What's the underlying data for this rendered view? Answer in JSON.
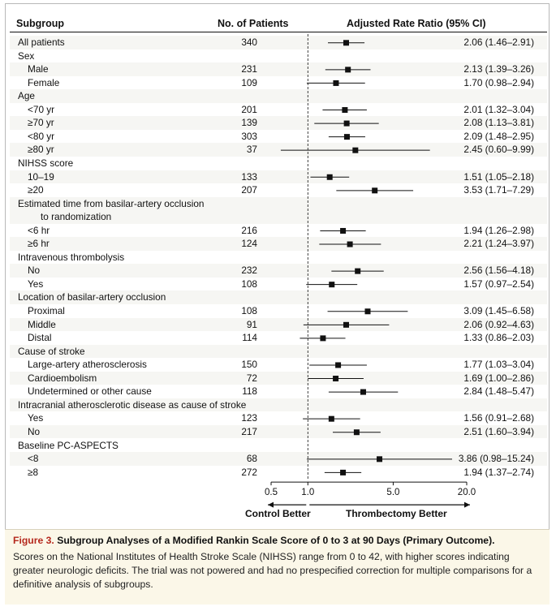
{
  "headers": {
    "subgroup": "Subgroup",
    "patients": "No. of Patients",
    "ratio": "Adjusted Rate Ratio (95% CI)"
  },
  "rows": [
    {
      "label": "All patients",
      "indent": 0,
      "n": "340",
      "ci": "2.06 (1.46–2.91)",
      "est": 2.06,
      "lo": 1.46,
      "hi": 2.91
    },
    {
      "label": "Sex",
      "indent": 0,
      "n": "",
      "ci": ""
    },
    {
      "label": "Male",
      "indent": 1,
      "n": "231",
      "ci": "2.13 (1.39–3.26)",
      "est": 2.13,
      "lo": 1.39,
      "hi": 3.26
    },
    {
      "label": "Female",
      "indent": 1,
      "n": "109",
      "ci": "1.70 (0.98–2.94)",
      "est": 1.7,
      "lo": 0.98,
      "hi": 2.94
    },
    {
      "label": "Age",
      "indent": 0,
      "n": "",
      "ci": ""
    },
    {
      "label": "<70 yr",
      "indent": 1,
      "n": "201",
      "ci": "2.01 (1.32–3.04)",
      "est": 2.01,
      "lo": 1.32,
      "hi": 3.04
    },
    {
      "label": "≥70 yr",
      "indent": 1,
      "n": "139",
      "ci": "2.08 (1.13–3.81)",
      "est": 2.08,
      "lo": 1.13,
      "hi": 3.81
    },
    {
      "label": "<80 yr",
      "indent": 1,
      "n": "303",
      "ci": "2.09 (1.48–2.95)",
      "est": 2.09,
      "lo": 1.48,
      "hi": 2.95
    },
    {
      "label": "≥80 yr",
      "indent": 1,
      "n": "37",
      "ci": "2.45 (0.60–9.99)",
      "est": 2.45,
      "lo": 0.6,
      "hi": 9.99
    },
    {
      "label": "NIHSS score",
      "indent": 0,
      "n": "",
      "ci": ""
    },
    {
      "label": "10–19",
      "indent": 1,
      "n": "133",
      "ci": "1.51 (1.05–2.18)",
      "est": 1.51,
      "lo": 1.05,
      "hi": 2.18
    },
    {
      "label": "≥20",
      "indent": 1,
      "n": "207",
      "ci": "3.53 (1.71–7.29)",
      "est": 3.53,
      "lo": 1.71,
      "hi": 7.29
    },
    {
      "label": "Estimated time from basilar-artery occlusion",
      "label2": "to randomization",
      "indent": 0,
      "n": "",
      "ci": "",
      "tall": true
    },
    {
      "label": "<6 hr",
      "indent": 1,
      "n": "216",
      "ci": "1.94 (1.26–2.98)",
      "est": 1.94,
      "lo": 1.26,
      "hi": 2.98
    },
    {
      "label": "≥6 hr",
      "indent": 1,
      "n": "124",
      "ci": "2.21 (1.24–3.97)",
      "est": 2.21,
      "lo": 1.24,
      "hi": 3.97
    },
    {
      "label": "Intravenous thrombolysis",
      "indent": 0,
      "n": "",
      "ci": ""
    },
    {
      "label": "No",
      "indent": 1,
      "n": "232",
      "ci": "2.56 (1.56–4.18)",
      "est": 2.56,
      "lo": 1.56,
      "hi": 4.18
    },
    {
      "label": "Yes",
      "indent": 1,
      "n": "108",
      "ci": "1.57 (0.97–2.54)",
      "est": 1.57,
      "lo": 0.97,
      "hi": 2.54
    },
    {
      "label": "Location of basilar-artery occlusion",
      "indent": 0,
      "n": "",
      "ci": ""
    },
    {
      "label": "Proximal",
      "indent": 1,
      "n": "108",
      "ci": "3.09 (1.45–6.58)",
      "est": 3.09,
      "lo": 1.45,
      "hi": 6.58
    },
    {
      "label": "Middle",
      "indent": 1,
      "n": "91",
      "ci": "2.06 (0.92–4.63)",
      "est": 2.06,
      "lo": 0.92,
      "hi": 4.63
    },
    {
      "label": "Distal",
      "indent": 1,
      "n": "114",
      "ci": "1.33 (0.86–2.03)",
      "est": 1.33,
      "lo": 0.86,
      "hi": 2.03
    },
    {
      "label": "Cause of stroke",
      "indent": 0,
      "n": "",
      "ci": ""
    },
    {
      "label": "Large-artery atherosclerosis",
      "indent": 1,
      "n": "150",
      "ci": "1.77 (1.03–3.04)",
      "est": 1.77,
      "lo": 1.03,
      "hi": 3.04
    },
    {
      "label": "Cardioembolism",
      "indent": 1,
      "n": "72",
      "ci": "1.69 (1.00–2.86)",
      "est": 1.69,
      "lo": 1.0,
      "hi": 2.86
    },
    {
      "label": "Undetermined or other cause",
      "indent": 1,
      "n": "118",
      "ci": "2.84 (1.48–5.47)",
      "est": 2.84,
      "lo": 1.48,
      "hi": 5.47
    },
    {
      "label": "Intracranial atherosclerotic disease as cause of stroke",
      "indent": 0,
      "n": "",
      "ci": ""
    },
    {
      "label": "Yes",
      "indent": 1,
      "n": "123",
      "ci": "1.56 (0.91–2.68)",
      "est": 1.56,
      "lo": 0.91,
      "hi": 2.68
    },
    {
      "label": "No",
      "indent": 1,
      "n": "217",
      "ci": "2.51 (1.60–3.94)",
      "est": 2.51,
      "lo": 1.6,
      "hi": 3.94
    },
    {
      "label": "Baseline PC-ASPECTS",
      "indent": 0,
      "n": "",
      "ci": ""
    },
    {
      "label": "<8",
      "indent": 1,
      "n": "68",
      "ci": "3.86 (0.98–15.24)",
      "est": 3.86,
      "lo": 0.98,
      "hi": 15.24
    },
    {
      "label": "≥8",
      "indent": 1,
      "n": "272",
      "ci": "1.94 (1.37–2.74)",
      "est": 1.94,
      "lo": 1.37,
      "hi": 2.74
    }
  ],
  "chart_data": {
    "type": "forest",
    "scale": "log",
    "xlim": [
      0.5,
      20.0
    ],
    "ticks": [
      0.5,
      1.0,
      5.0,
      20.0
    ],
    "tick_labels": [
      "0.5",
      "1.0",
      "5.0",
      "20.0"
    ],
    "reference_line": 1.0,
    "left_label": "Control Better",
    "right_label": "Thrombectomy Better"
  },
  "caption": {
    "figure": "Figure 3.",
    "title": "Subgroup Analyses of a Modified Rankin Scale Score of 0 to 3 at 90 Days (Primary Outcome).",
    "text": "Scores on the National Institutes of Health Stroke Scale (NIHSS) range from 0 to 42, with higher scores indicating greater neurologic deficits. The trial was not powered and had no prespecified correction for multiple comparisons for a definitive analysis of subgroups."
  },
  "colors": {
    "figure_label": "#b5281d",
    "caption_bg": "#fbf7e8",
    "stripe": "#f6f6f3",
    "ink": "#111111"
  }
}
